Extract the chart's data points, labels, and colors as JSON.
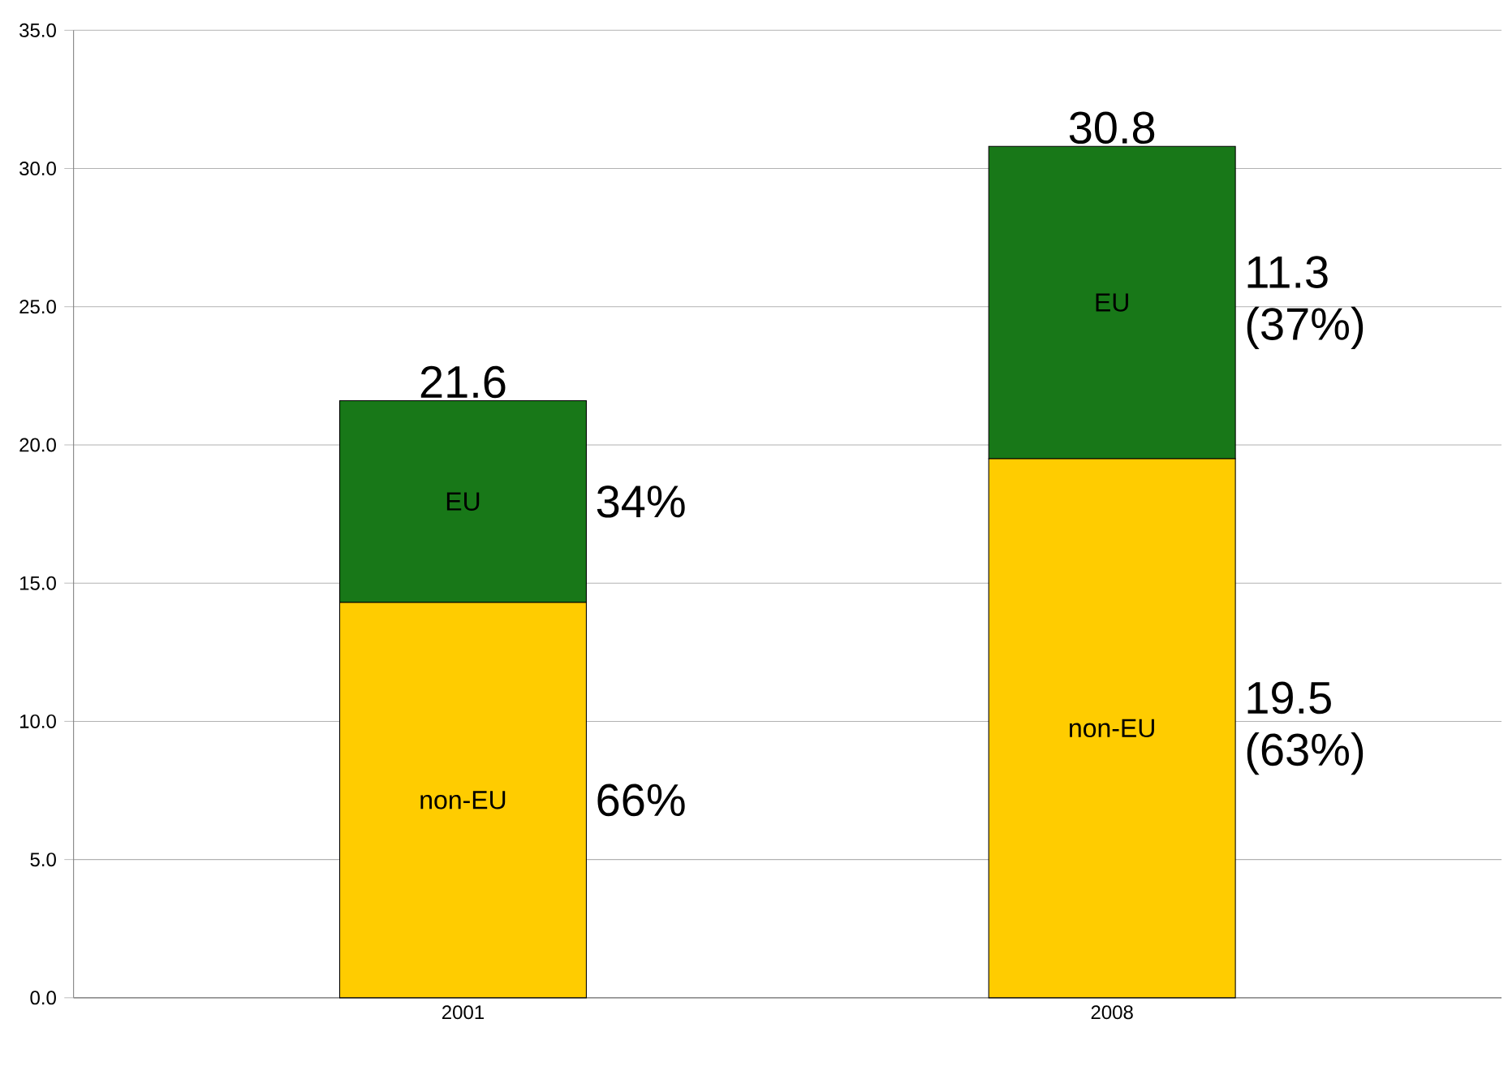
{
  "chart_data": {
    "type": "bar",
    "stacked": true,
    "categories": [
      "2001",
      "2008"
    ],
    "series": [
      {
        "name": "non-EU",
        "color": "#ffcc00",
        "values": [
          14.3,
          19.5
        ]
      },
      {
        "name": "EU",
        "color": "#187818",
        "values": [
          7.3,
          11.3
        ]
      }
    ],
    "annotations": [
      "66%",
      "34%",
      "19.5 (63%)",
      "11.3 (37%)"
    ],
    "totals": [
      "21.6",
      "30.8"
    ],
    "ylim": [
      0,
      35
    ],
    "yticks": [
      {
        "value": 0,
        "label": "0.0"
      },
      {
        "value": 5,
        "label": "5.0"
      },
      {
        "value": 10,
        "label": "10.0"
      },
      {
        "value": 15,
        "label": "15.0"
      },
      {
        "value": 20,
        "label": "20.0"
      },
      {
        "value": 25,
        "label": "25.0"
      },
      {
        "value": 30,
        "label": "30.0"
      },
      {
        "value": 35,
        "label": "35.0"
      }
    ],
    "grid": "y"
  }
}
